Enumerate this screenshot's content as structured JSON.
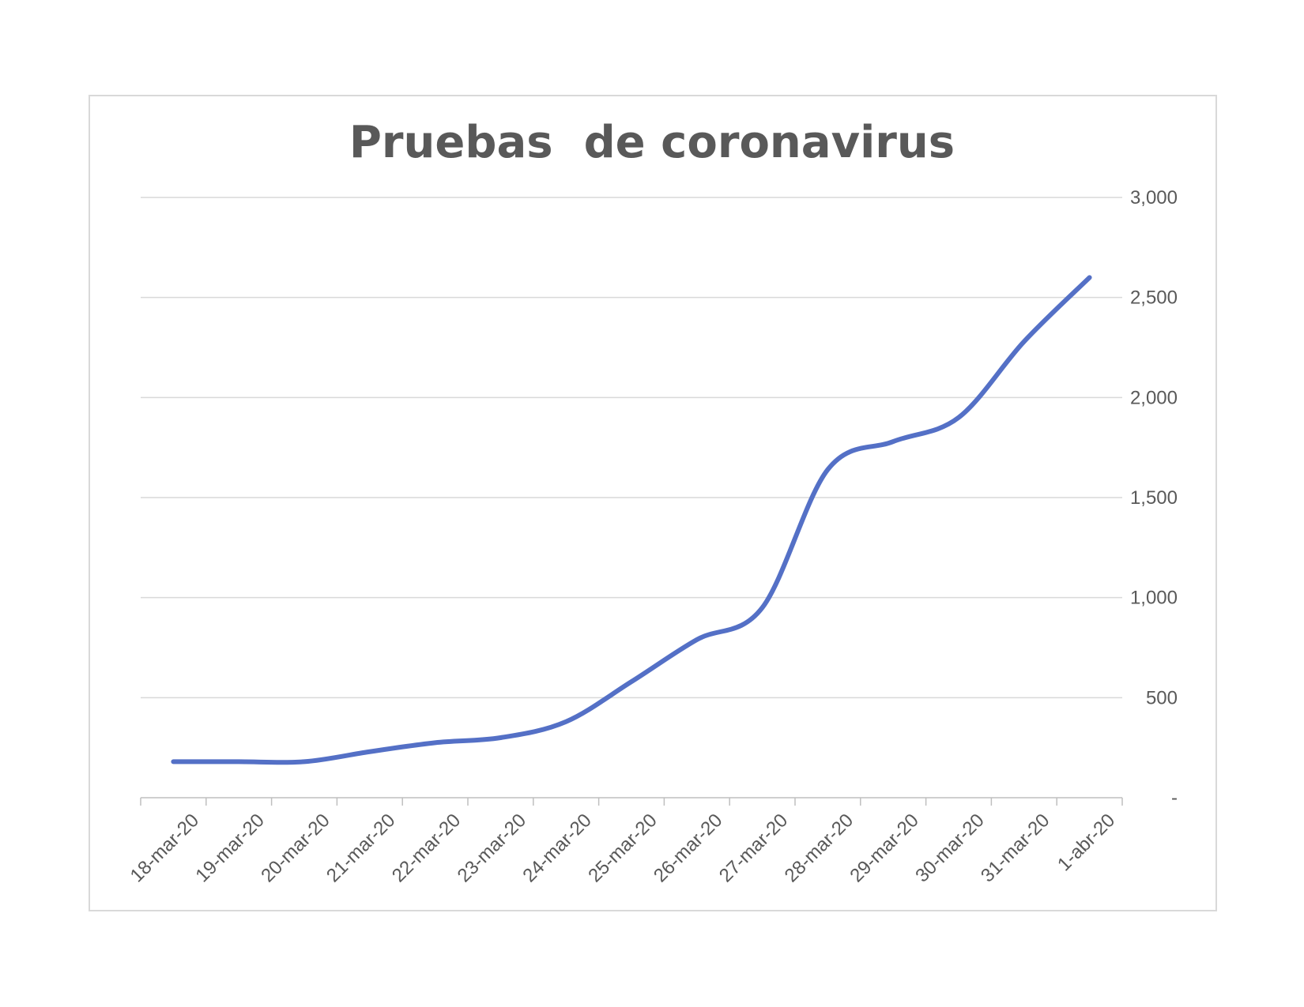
{
  "chart_data": {
    "type": "line",
    "title": "Pruebas  de coronavirus",
    "xlabel": "",
    "ylabel": "",
    "categories": [
      "18-mar-20",
      "19-mar-20",
      "20-mar-20",
      "21-mar-20",
      "22-mar-20",
      "23-mar-20",
      "24-mar-20",
      "25-mar-20",
      "26-mar-20",
      "27-mar-20",
      "28-mar-20",
      "29-mar-20",
      "30-mar-20",
      "31-mar-20",
      "1-abr-20"
    ],
    "series": [
      {
        "values": [
          180,
          180,
          180,
          230,
          275,
          300,
          380,
          580,
          790,
          950,
          1640,
          1780,
          1900,
          2280,
          2600
        ]
      }
    ],
    "ylim": [
      0,
      3000
    ],
    "yticks": [
      0,
      500,
      1000,
      1500,
      2000,
      2500,
      3000
    ],
    "ytick_labels": [
      "-",
      "500",
      "1,000",
      "1,500",
      "2,000",
      "2,500",
      "3,000"
    ],
    "y_axis_side": "right",
    "grid": true,
    "line_color": "#5470c6"
  }
}
